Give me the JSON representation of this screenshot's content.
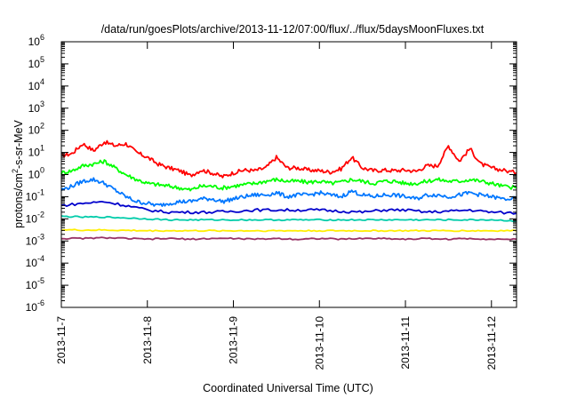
{
  "chart_data": {
    "type": "line",
    "title": "/data/run/goesPlots/archive/2013-11-12/07:00/flux/../flux/5daysMoonFluxes.txt",
    "xlabel": "Coordinated Universal Time (UTC)",
    "ylabel": {
      "base": "protons/cm",
      "sup": "2",
      "rest": "-s-sr-MeV"
    },
    "yscale": "log",
    "ylim": [
      1e-06,
      1000000.0
    ],
    "xlim": [
      "2013-11-07",
      "2013-11-12 07:00"
    ],
    "x_ticks": [
      "2013-11-7",
      "2013-11-8",
      "2013-11-9",
      "2013-11-10",
      "2013-11-11",
      "2013-11-12"
    ],
    "y_ticks": [
      {
        "value": 1000000.0,
        "base": "10",
        "exp": "6"
      },
      {
        "value": 100000.0,
        "base": "10",
        "exp": "5"
      },
      {
        "value": 10000.0,
        "base": "10",
        "exp": "4"
      },
      {
        "value": 1000.0,
        "base": "10",
        "exp": "3"
      },
      {
        "value": 100.0,
        "base": "10",
        "exp": "2"
      },
      {
        "value": 10.0,
        "base": "10",
        "exp": "1"
      },
      {
        "value": 1,
        "base": "10",
        "exp": "0"
      },
      {
        "value": 0.1,
        "base": "10",
        "exp": "-1"
      },
      {
        "value": 0.01,
        "base": "10",
        "exp": "-2"
      },
      {
        "value": 0.001,
        "base": "10",
        "exp": "-3"
      },
      {
        "value": 0.0001,
        "base": "10",
        "exp": "-4"
      },
      {
        "value": 1e-05,
        "base": "10",
        "exp": "-5"
      },
      {
        "value": 1e-06,
        "base": "10",
        "exp": "-6"
      }
    ],
    "grid": false,
    "legend": "none",
    "series": [
      {
        "color": "#ff0000",
        "x": [
          "11-07 00:00",
          "11-07 03:00",
          "11-07 06:00",
          "11-07 09:00",
          "11-07 12:00",
          "11-07 15:00",
          "11-07 18:00",
          "11-07 21:00",
          "11-08 00:00",
          "11-08 03:00",
          "11-08 06:00",
          "11-08 09:00",
          "11-08 12:00",
          "11-08 15:00",
          "11-08 18:00",
          "11-08 21:00",
          "11-09 00:00",
          "11-09 03:00",
          "11-09 06:00",
          "11-09 09:00",
          "11-09 12:00",
          "11-09 15:00",
          "11-09 18:00",
          "11-09 21:00",
          "11-10 00:00",
          "11-10 03:00",
          "11-10 06:00",
          "11-10 09:00",
          "11-10 12:00",
          "11-10 15:00",
          "11-10 18:00",
          "11-10 21:00",
          "11-11 00:00",
          "11-11 03:00",
          "11-11 06:00",
          "11-11 09:00",
          "11-11 12:00",
          "11-11 15:00",
          "11-11 18:00",
          "11-11 21:00",
          "11-12 00:00",
          "11-12 03:00",
          "11-12 07:00"
        ],
        "values": [
          7,
          9,
          25,
          12,
          30,
          20,
          25,
          10,
          6,
          3,
          2,
          1.5,
          0.9,
          1.6,
          1.2,
          0.8,
          1.2,
          1.6,
          1.5,
          2,
          6,
          2,
          2,
          1.6,
          1.5,
          1.3,
          1.8,
          6,
          2,
          1.5,
          1.6,
          1.5,
          1.6,
          1.4,
          2.5,
          2.5,
          20,
          4,
          15,
          3,
          2,
          1.6,
          1.2
        ]
      },
      {
        "color": "#00ff00",
        "x": [
          "11-07 00:00",
          "11-07 03:00",
          "11-07 06:00",
          "11-07 09:00",
          "11-07 12:00",
          "11-07 15:00",
          "11-07 18:00",
          "11-07 21:00",
          "11-08 00:00",
          "11-08 03:00",
          "11-08 06:00",
          "11-08 09:00",
          "11-08 12:00",
          "11-08 15:00",
          "11-08 18:00",
          "11-08 21:00",
          "11-09 00:00",
          "11-09 03:00",
          "11-09 06:00",
          "11-09 09:00",
          "11-09 12:00",
          "11-09 15:00",
          "11-09 18:00",
          "11-09 21:00",
          "11-10 00:00",
          "11-10 03:00",
          "11-10 06:00",
          "11-10 09:00",
          "11-10 12:00",
          "11-10 15:00",
          "11-10 18:00",
          "11-10 21:00",
          "11-11 00:00",
          "11-11 03:00",
          "11-11 06:00",
          "11-11 09:00",
          "11-11 12:00",
          "11-11 15:00",
          "11-11 18:00",
          "11-11 21:00",
          "11-12 00:00",
          "11-12 03:00",
          "11-12 07:00"
        ],
        "values": [
          1.2,
          1.5,
          2.5,
          3,
          4,
          2,
          1,
          0.6,
          0.4,
          0.35,
          0.3,
          0.25,
          0.2,
          0.3,
          0.3,
          0.25,
          0.3,
          0.35,
          0.4,
          0.5,
          0.6,
          0.5,
          0.5,
          0.45,
          0.5,
          0.4,
          0.45,
          0.6,
          0.5,
          0.4,
          0.5,
          0.5,
          0.4,
          0.4,
          0.5,
          0.6,
          0.5,
          0.5,
          0.6,
          0.5,
          0.4,
          0.3,
          0.25
        ]
      },
      {
        "color": "#0077ff",
        "x": [
          "11-07 00:00",
          "11-07 03:00",
          "11-07 06:00",
          "11-07 09:00",
          "11-07 12:00",
          "11-07 15:00",
          "11-07 18:00",
          "11-07 21:00",
          "11-08 00:00",
          "11-08 03:00",
          "11-08 06:00",
          "11-08 09:00",
          "11-08 12:00",
          "11-08 15:00",
          "11-08 18:00",
          "11-08 21:00",
          "11-09 00:00",
          "11-09 03:00",
          "11-09 06:00",
          "11-09 09:00",
          "11-09 12:00",
          "11-09 15:00",
          "11-09 18:00",
          "11-09 21:00",
          "11-10 00:00",
          "11-10 03:00",
          "11-10 06:00",
          "11-10 09:00",
          "11-10 12:00",
          "11-10 15:00",
          "11-10 18:00",
          "11-10 21:00",
          "11-11 00:00",
          "11-11 03:00",
          "11-11 06:00",
          "11-11 09:00",
          "11-11 12:00",
          "11-11 15:00",
          "11-11 18:00",
          "11-11 21:00",
          "11-12 00:00",
          "11-12 03:00",
          "11-12 07:00"
        ],
        "values": [
          0.2,
          0.3,
          0.5,
          0.6,
          0.4,
          0.2,
          0.1,
          0.06,
          0.05,
          0.04,
          0.05,
          0.06,
          0.06,
          0.08,
          0.08,
          0.06,
          0.08,
          0.1,
          0.12,
          0.12,
          0.15,
          0.1,
          0.12,
          0.12,
          0.15,
          0.12,
          0.1,
          0.18,
          0.12,
          0.1,
          0.12,
          0.12,
          0.1,
          0.08,
          0.12,
          0.12,
          0.1,
          0.12,
          0.15,
          0.12,
          0.1,
          0.08,
          0.08
        ]
      },
      {
        "color": "#0000cc",
        "x": [
          "11-07 00:00",
          "11-07 06:00",
          "11-07 12:00",
          "11-07 18:00",
          "11-08 00:00",
          "11-08 06:00",
          "11-08 12:00",
          "11-08 18:00",
          "11-09 00:00",
          "11-09 06:00",
          "11-09 12:00",
          "11-09 18:00",
          "11-10 00:00",
          "11-10 06:00",
          "11-10 12:00",
          "11-10 18:00",
          "11-11 00:00",
          "11-11 06:00",
          "11-11 12:00",
          "11-11 18:00",
          "11-12 00:00",
          "11-12 07:00"
        ],
        "values": [
          0.04,
          0.05,
          0.06,
          0.04,
          0.025,
          0.02,
          0.02,
          0.02,
          0.022,
          0.025,
          0.025,
          0.025,
          0.025,
          0.022,
          0.02,
          0.025,
          0.025,
          0.02,
          0.022,
          0.025,
          0.02,
          0.018
        ]
      },
      {
        "color": "#00ccaa",
        "x": [
          "11-07 00:00",
          "11-07 06:00",
          "11-07 12:00",
          "11-07 18:00",
          "11-08 00:00",
          "11-08 06:00",
          "11-08 12:00",
          "11-08 18:00",
          "11-09 00:00",
          "11-09 06:00",
          "11-09 12:00",
          "11-09 18:00",
          "11-10 00:00",
          "11-10 06:00",
          "11-10 12:00",
          "11-10 18:00",
          "11-11 00:00",
          "11-11 06:00",
          "11-11 12:00",
          "11-11 18:00",
          "11-12 00:00",
          "11-12 07:00"
        ],
        "values": [
          0.013,
          0.012,
          0.012,
          0.011,
          0.01,
          0.009,
          0.009,
          0.009,
          0.009,
          0.009,
          0.009,
          0.009,
          0.009,
          0.009,
          0.009,
          0.009,
          0.009,
          0.009,
          0.009,
          0.009,
          0.009,
          0.008
        ]
      },
      {
        "color": "#ffee00",
        "x": [
          "11-07 00:00",
          "11-07 06:00",
          "11-07 12:00",
          "11-07 18:00",
          "11-08 00:00",
          "11-08 06:00",
          "11-08 12:00",
          "11-08 18:00",
          "11-09 00:00",
          "11-09 06:00",
          "11-09 12:00",
          "11-09 18:00",
          "11-10 00:00",
          "11-10 06:00",
          "11-10 12:00",
          "11-10 18:00",
          "11-11 00:00",
          "11-11 06:00",
          "11-11 12:00",
          "11-11 18:00",
          "11-12 00:00",
          "11-12 07:00"
        ],
        "values": [
          0.0032,
          0.0031,
          0.0031,
          0.003,
          0.0029,
          0.0029,
          0.0029,
          0.0029,
          0.0029,
          0.0029,
          0.0029,
          0.0029,
          0.0029,
          0.0029,
          0.0029,
          0.0029,
          0.0029,
          0.0029,
          0.0029,
          0.0029,
          0.0029,
          0.0029
        ]
      },
      {
        "color": "#993366",
        "x": [
          "11-07 00:00",
          "11-07 06:00",
          "11-07 12:00",
          "11-07 18:00",
          "11-08 00:00",
          "11-08 06:00",
          "11-08 12:00",
          "11-08 18:00",
          "11-09 00:00",
          "11-09 06:00",
          "11-09 12:00",
          "11-09 18:00",
          "11-10 00:00",
          "11-10 06:00",
          "11-10 12:00",
          "11-10 18:00",
          "11-11 00:00",
          "11-11 06:00",
          "11-11 12:00",
          "11-11 18:00",
          "11-12 00:00",
          "11-12 07:00"
        ],
        "values": [
          0.0013,
          0.0013,
          0.0014,
          0.0013,
          0.0012,
          0.0013,
          0.0012,
          0.0013,
          0.0013,
          0.0012,
          0.0013,
          0.0012,
          0.0013,
          0.0012,
          0.0013,
          0.0013,
          0.0012,
          0.0013,
          0.0012,
          0.0013,
          0.0012,
          0.0012
        ]
      }
    ]
  }
}
